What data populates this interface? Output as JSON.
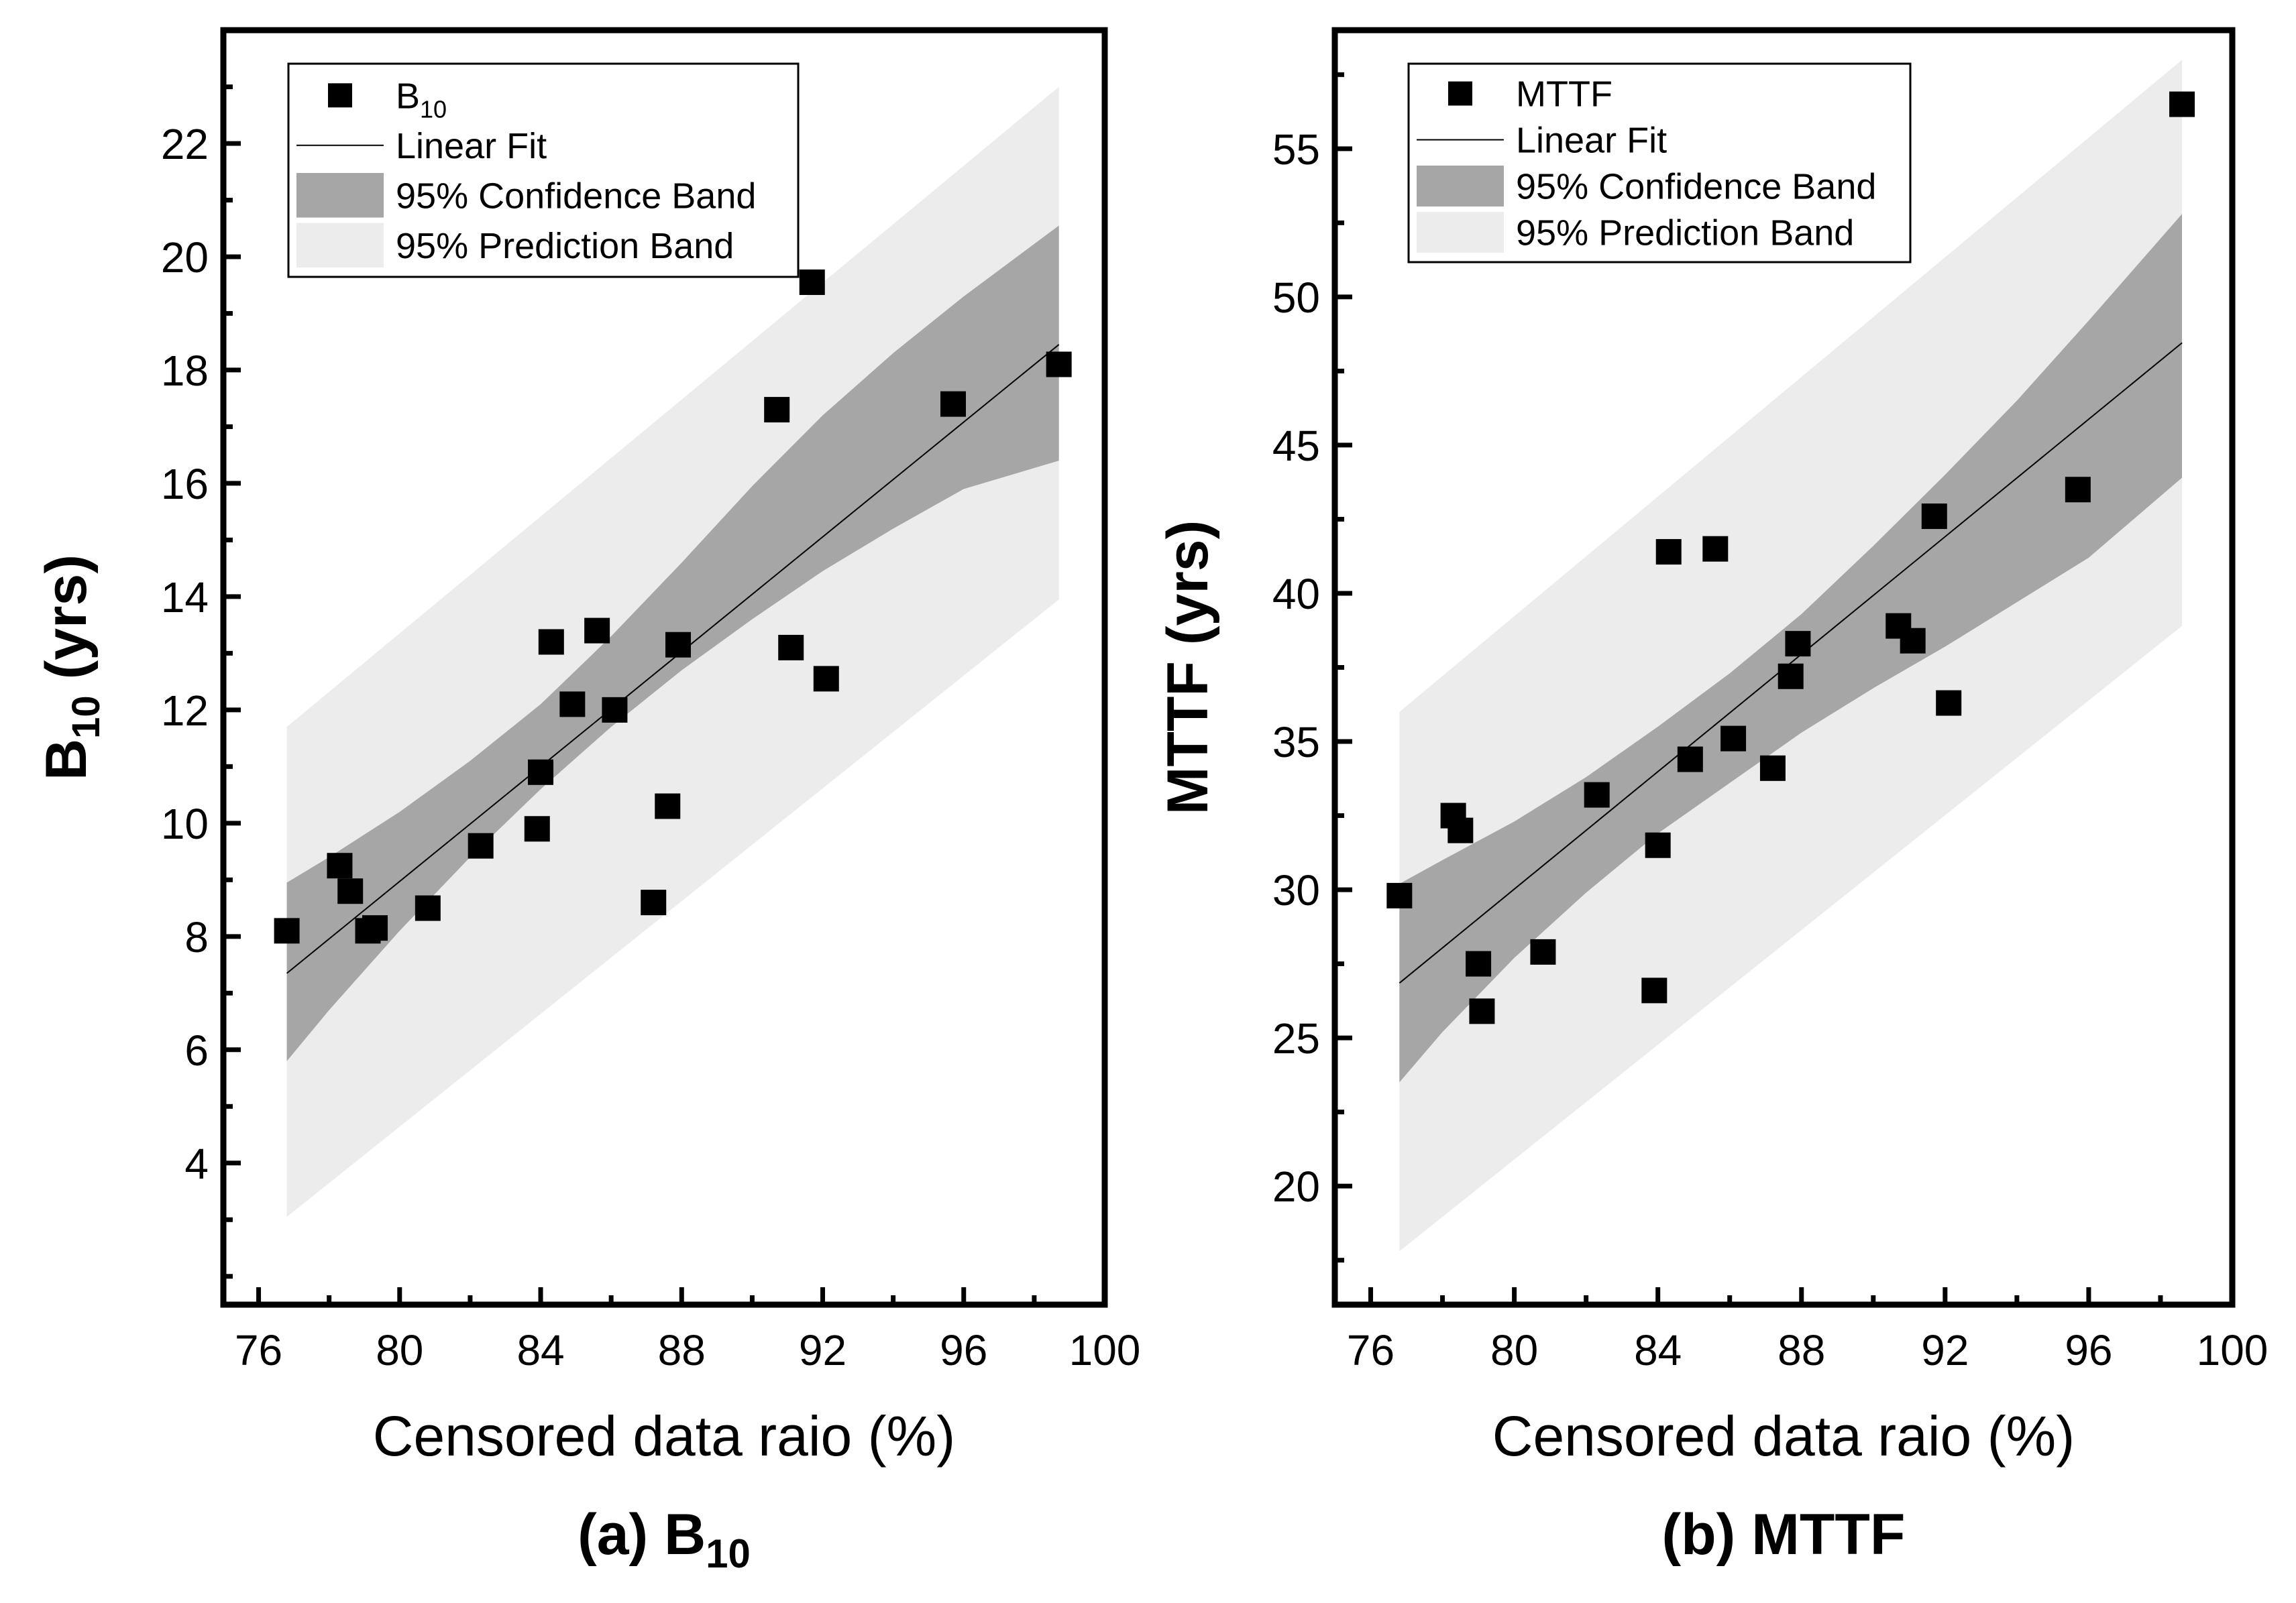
{
  "chart_data": [
    {
      "type": "scatter",
      "panel_caption": "(a) B",
      "panel_caption_sub": "10",
      "xlabel": "Censored data raio (%)",
      "ylabel": "B",
      "ylabel_sub": "10",
      "ylabel_unit": " (yrs)",
      "xlim": [
        75,
        100
      ],
      "ylim": [
        1.5,
        24
      ],
      "xticks": [
        76,
        80,
        84,
        88,
        92,
        96,
        100
      ],
      "yticks": [
        4,
        6,
        8,
        10,
        12,
        14,
        16,
        18,
        20,
        22
      ],
      "legend": {
        "position": "top-left",
        "items": [
          {
            "kind": "marker",
            "label": "B",
            "sub": "10"
          },
          {
            "kind": "line",
            "label": "Linear Fit"
          },
          {
            "kind": "conf",
            "label": "95% Confidence Band"
          },
          {
            "kind": "pred",
            "label": "95% Prediction Band"
          }
        ]
      },
      "points": [
        {
          "x": 76.8,
          "y": 8.1
        },
        {
          "x": 78.3,
          "y": 9.25
        },
        {
          "x": 78.6,
          "y": 8.8
        },
        {
          "x": 79.1,
          "y": 8.1
        },
        {
          "x": 79.3,
          "y": 8.15
        },
        {
          "x": 80.8,
          "y": 8.5
        },
        {
          "x": 82.3,
          "y": 9.6
        },
        {
          "x": 83.9,
          "y": 9.9
        },
        {
          "x": 84.0,
          "y": 10.9
        },
        {
          "x": 84.3,
          "y": 13.2
        },
        {
          "x": 84.9,
          "y": 12.1
        },
        {
          "x": 85.6,
          "y": 13.4
        },
        {
          "x": 86.1,
          "y": 12.0
        },
        {
          "x": 87.2,
          "y": 8.6
        },
        {
          "x": 87.6,
          "y": 10.3
        },
        {
          "x": 87.9,
          "y": 13.15
        },
        {
          "x": 90.7,
          "y": 17.3
        },
        {
          "x": 91.1,
          "y": 13.1
        },
        {
          "x": 91.7,
          "y": 19.55
        },
        {
          "x": 92.1,
          "y": 12.55
        },
        {
          "x": 95.7,
          "y": 17.4
        },
        {
          "x": 98.7,
          "y": 18.1
        }
      ],
      "fit": {
        "x": [
          76.8,
          98.7
        ],
        "y": [
          7.35,
          18.45
        ]
      },
      "confidence_band": {
        "x": [
          76.8,
          78,
          80,
          82,
          84,
          86,
          88,
          90,
          92,
          94,
          96,
          98.7
        ],
        "upper": [
          8.95,
          9.4,
          10.2,
          11.1,
          12.1,
          13.3,
          14.6,
          15.95,
          17.2,
          18.3,
          19.3,
          20.55
        ],
        "lower": [
          5.8,
          6.7,
          8.1,
          9.4,
          10.6,
          11.7,
          12.7,
          13.6,
          14.45,
          15.2,
          15.9,
          16.4
        ]
      },
      "prediction_band": {
        "x": [
          76.8,
          98.7
        ],
        "upper": [
          11.7,
          23.0
        ],
        "lower": [
          3.05,
          13.95
        ]
      }
    },
    {
      "type": "scatter",
      "panel_caption": "(b) MTTF",
      "panel_caption_sub": "",
      "xlabel": "Censored data raio (%)",
      "ylabel": "MTTF",
      "ylabel_sub": "",
      "ylabel_unit": " (yrs)",
      "xlim": [
        75,
        100
      ],
      "ylim": [
        16,
        59
      ],
      "xticks": [
        76,
        80,
        84,
        88,
        92,
        96,
        100
      ],
      "yticks": [
        20,
        25,
        30,
        35,
        40,
        45,
        50,
        55
      ],
      "legend": {
        "position": "top-left",
        "items": [
          {
            "kind": "marker",
            "label": "MTTF",
            "sub": ""
          },
          {
            "kind": "line",
            "label": "Linear Fit"
          },
          {
            "kind": "conf",
            "label": "95% Confidence Band"
          },
          {
            "kind": "pred",
            "label": "95% Prediction Band"
          }
        ]
      },
      "points": [
        {
          "x": 76.8,
          "y": 29.8
        },
        {
          "x": 78.3,
          "y": 32.5
        },
        {
          "x": 78.5,
          "y": 32.0
        },
        {
          "x": 79.0,
          "y": 27.5
        },
        {
          "x": 79.1,
          "y": 25.9
        },
        {
          "x": 80.8,
          "y": 27.9
        },
        {
          "x": 82.3,
          "y": 33.2
        },
        {
          "x": 83.9,
          "y": 26.6
        },
        {
          "x": 84.0,
          "y": 31.5
        },
        {
          "x": 84.3,
          "y": 41.4
        },
        {
          "x": 84.9,
          "y": 34.4
        },
        {
          "x": 85.6,
          "y": 41.5
        },
        {
          "x": 86.1,
          "y": 35.1
        },
        {
          "x": 87.2,
          "y": 34.1
        },
        {
          "x": 87.7,
          "y": 37.2
        },
        {
          "x": 87.9,
          "y": 38.3
        },
        {
          "x": 90.7,
          "y": 38.9
        },
        {
          "x": 91.1,
          "y": 38.4
        },
        {
          "x": 91.7,
          "y": 42.6
        },
        {
          "x": 92.1,
          "y": 36.3
        },
        {
          "x": 95.7,
          "y": 43.5
        },
        {
          "x": 98.6,
          "y": 56.5
        }
      ],
      "fit": {
        "x": [
          76.8,
          98.6
        ],
        "y": [
          26.85,
          48.45
        ]
      },
      "confidence_band": {
        "x": [
          76.8,
          78,
          80,
          82,
          84,
          86,
          88,
          90,
          92,
          94,
          96,
          98.6
        ],
        "upper": [
          30.2,
          31.0,
          32.3,
          33.8,
          35.5,
          37.3,
          39.3,
          41.6,
          44.0,
          46.5,
          49.2,
          52.8
        ],
        "lower": [
          23.5,
          25.2,
          27.7,
          29.9,
          31.9,
          33.6,
          35.3,
          36.8,
          38.2,
          39.7,
          41.2,
          43.9
        ]
      },
      "prediction_band": {
        "x": [
          76.8,
          98.6
        ],
        "upper": [
          36.0,
          58.0
        ],
        "lower": [
          17.8,
          38.9
        ]
      }
    }
  ]
}
